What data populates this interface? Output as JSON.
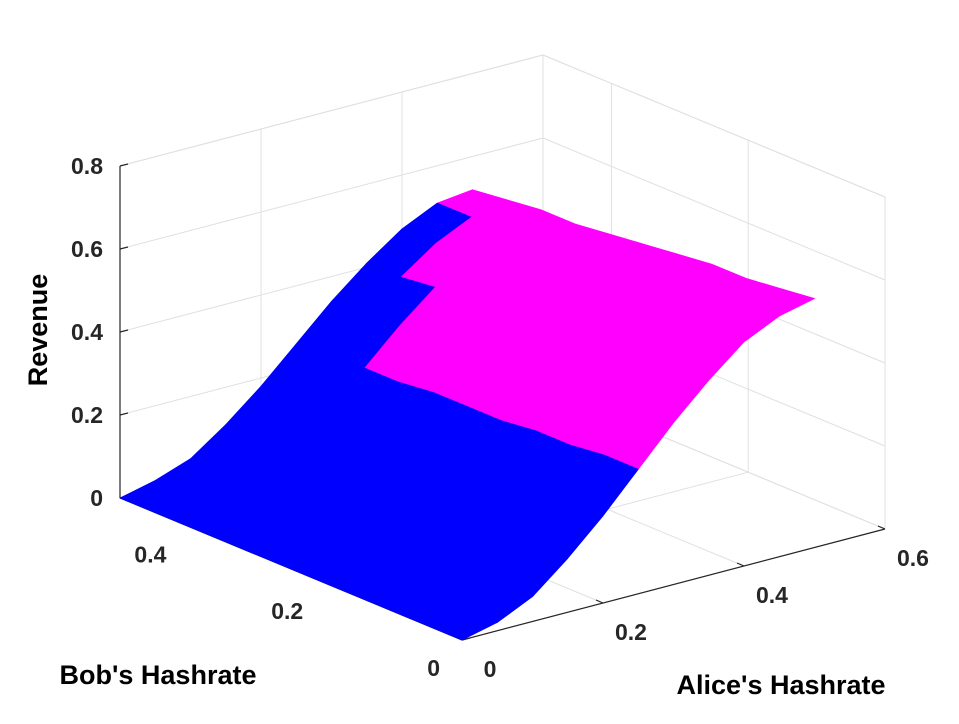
{
  "chart_data": {
    "type": "surface",
    "x_label": "Alice's Hashrate",
    "y_label": "Bob's Hashrate",
    "z_label": "Revenue",
    "x": [
      0,
      0.05,
      0.1,
      0.15,
      0.2,
      0.25,
      0.3,
      0.35,
      0.4,
      0.45,
      0.5
    ],
    "y": [
      0,
      0.05,
      0.1,
      0.15,
      0.2,
      0.25,
      0.3,
      0.35,
      0.4,
      0.45,
      0.5
    ],
    "xlim": [
      0,
      0.6
    ],
    "ylim": [
      0,
      0.5
    ],
    "zlim": [
      0,
      0.8
    ],
    "xticks": [
      0,
      0.2,
      0.4,
      0.6
    ],
    "yticks": [
      0,
      0.2,
      0.4
    ],
    "zticks": [
      0,
      0.2,
      0.4,
      0.6,
      0.8
    ],
    "grid": true,
    "series": [
      {
        "color": "#0000ff",
        "values": [
          [
            0,
            0.02,
            0.06,
            0.13,
            0.21,
            null,
            null,
            null,
            null,
            null,
            null
          ],
          [
            0,
            0.02,
            0.06,
            0.13,
            0.21,
            0.3,
            null,
            null,
            null,
            null,
            null
          ],
          [
            0,
            0.02,
            0.06,
            0.13,
            0.21,
            0.29,
            null,
            null,
            null,
            null,
            null
          ],
          [
            0,
            0.02,
            0.06,
            0.12,
            0.2,
            0.29,
            null,
            null,
            null,
            null,
            null
          ],
          [
            0,
            0.02,
            0.06,
            0.12,
            0.2,
            0.28,
            null,
            null,
            null,
            null,
            null
          ],
          [
            0,
            0.02,
            0.06,
            0.12,
            0.2,
            0.28,
            null,
            null,
            null,
            null,
            null
          ],
          [
            0,
            0.02,
            0.06,
            0.12,
            0.19,
            0.28,
            null,
            null,
            null,
            null,
            null
          ],
          [
            0,
            0.02,
            0.06,
            0.12,
            0.19,
            0.27,
            null,
            null,
            null,
            null,
            null
          ],
          [
            0,
            0.02,
            0.06,
            0.12,
            0.19,
            0.27,
            null,
            null,
            null,
            null,
            null
          ],
          [
            0,
            0.02,
            0.06,
            0.11,
            0.19,
            0.26,
            0.34,
            0.41,
            null,
            null,
            null
          ],
          [
            0,
            0.02,
            0.05,
            0.11,
            0.18,
            0.26,
            0.34,
            0.41,
            0.47,
            0.51,
            null
          ]
        ]
      },
      {
        "color": "#ff00ff",
        "values": [
          [
            null,
            null,
            null,
            null,
            null,
            0.3,
            0.39,
            0.47,
            0.54,
            0.58,
            0.6
          ],
          [
            null,
            null,
            null,
            null,
            null,
            null,
            0.38,
            0.46,
            0.53,
            0.58,
            0.59
          ],
          [
            null,
            null,
            null,
            null,
            null,
            null,
            0.38,
            0.46,
            0.52,
            0.57,
            0.58
          ],
          [
            null,
            null,
            null,
            null,
            null,
            null,
            0.37,
            0.45,
            0.52,
            0.56,
            0.58
          ],
          [
            null,
            null,
            null,
            null,
            null,
            null,
            0.37,
            0.45,
            0.51,
            0.55,
            0.57
          ],
          [
            null,
            null,
            null,
            null,
            null,
            null,
            0.36,
            0.44,
            0.5,
            0.54,
            0.56
          ],
          [
            null,
            null,
            null,
            null,
            null,
            null,
            0.36,
            0.43,
            0.5,
            0.54,
            0.55
          ],
          [
            null,
            null,
            null,
            null,
            null,
            null,
            0.35,
            0.43,
            0.49,
            0.53,
            0.54
          ],
          [
            null,
            null,
            null,
            null,
            null,
            null,
            0.35,
            0.42,
            0.48,
            0.52,
            0.54
          ],
          [
            null,
            null,
            null,
            null,
            null,
            null,
            null,
            null,
            0.47,
            0.51,
            0.53
          ],
          [
            null,
            null,
            null,
            null,
            null,
            null,
            null,
            null,
            null,
            null,
            0.52
          ]
        ]
      }
    ]
  }
}
